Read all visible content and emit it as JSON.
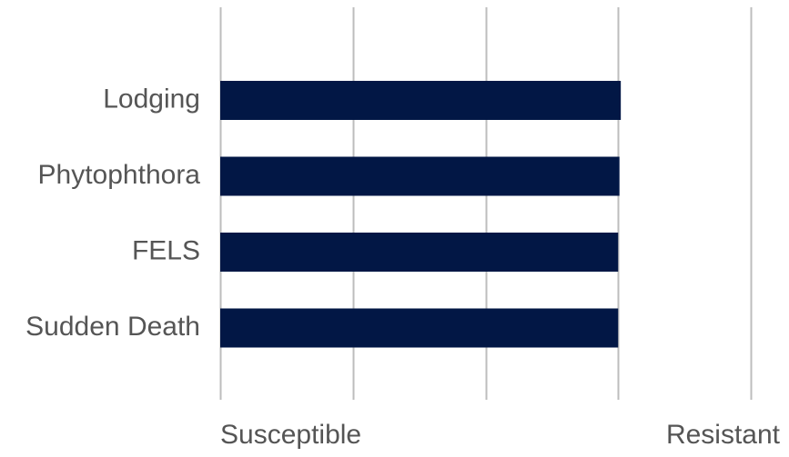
{
  "colors": {
    "bar": "#021745",
    "gridline": "#bdbdbd",
    "label_text": "#555555",
    "background": "#ffffff"
  },
  "chart_data": {
    "type": "bar",
    "orientation": "horizontal",
    "categories": [
      "Lodging",
      "Phytophthora",
      "FELS",
      "Sudden Death"
    ],
    "values": [
      3.02,
      3.01,
      3.0,
      3.0
    ],
    "xlim": [
      0,
      4
    ],
    "x_ticks": [
      0,
      1,
      2,
      3,
      4
    ],
    "x_end_labels": {
      "min": "Susceptible",
      "max": "Resistant"
    },
    "grid": true,
    "legend": "none"
  }
}
